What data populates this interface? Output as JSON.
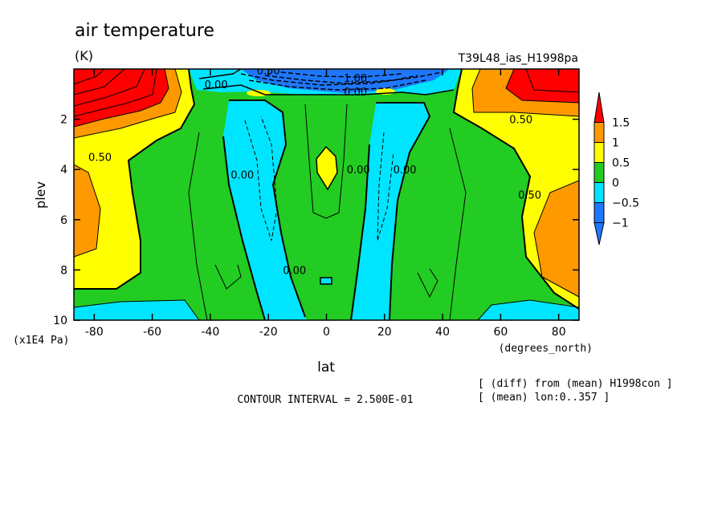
{
  "title": "air temperature",
  "units": "(K)",
  "experiment": "T39L48_ias_H1998pa",
  "chart_data": {
    "type": "heatmap",
    "x": {
      "label": "lat",
      "units": "(degrees_north)",
      "range": [
        -87,
        87
      ],
      "ticks": [
        -80,
        -60,
        -40,
        -20,
        0,
        20,
        40,
        60,
        80
      ]
    },
    "y": {
      "label": "plev",
      "units": "(x1E4 Pa)",
      "range": [
        0,
        10
      ],
      "inverted": true,
      "ticks": [
        2,
        4,
        6,
        8,
        10
      ]
    },
    "colorbar": {
      "levels": [
        -1,
        -0.5,
        0,
        0.5,
        1,
        1.5
      ],
      "labels": [
        "−1",
        "−0.5",
        "0",
        "0.5",
        "1",
        "1.5"
      ],
      "colors": [
        "#1e78ff",
        "#00e5ff",
        "#22cc22",
        "#ffff00",
        "#ff9900",
        "#ff0000"
      ]
    },
    "contour_labels": [
      {
        "text": "0.50",
        "lat": -20,
        "plev": 0.05
      },
      {
        "text": "0.00",
        "lat": -38,
        "plev": 0.6
      },
      {
        "text": "1.00",
        "lat": 10,
        "plev": 0.35
      },
      {
        "text": "0.00",
        "lat": 10,
        "plev": 0.9
      },
      {
        "text": "0.50",
        "lat": -78,
        "plev": 3.5
      },
      {
        "text": "0.00",
        "lat": -29,
        "plev": 4.2
      },
      {
        "text": "0.00",
        "lat": 11,
        "plev": 4.0
      },
      {
        "text": "0.00",
        "lat": 27,
        "plev": 4.0
      },
      {
        "text": "0.50",
        "lat": 67,
        "plev": 2.0
      },
      {
        "text": "0.50",
        "lat": 70,
        "plev": 5.0
      },
      {
        "text": "0.00",
        "lat": -11,
        "plev": 8.0
      }
    ],
    "contour_interval": "CONTOUR INTERVAL = 2.500E-01"
  },
  "notes": {
    "line1": "[ (diff) from (mean) H1998con ]",
    "line2": "[ (mean) lon:0..357 ]"
  }
}
